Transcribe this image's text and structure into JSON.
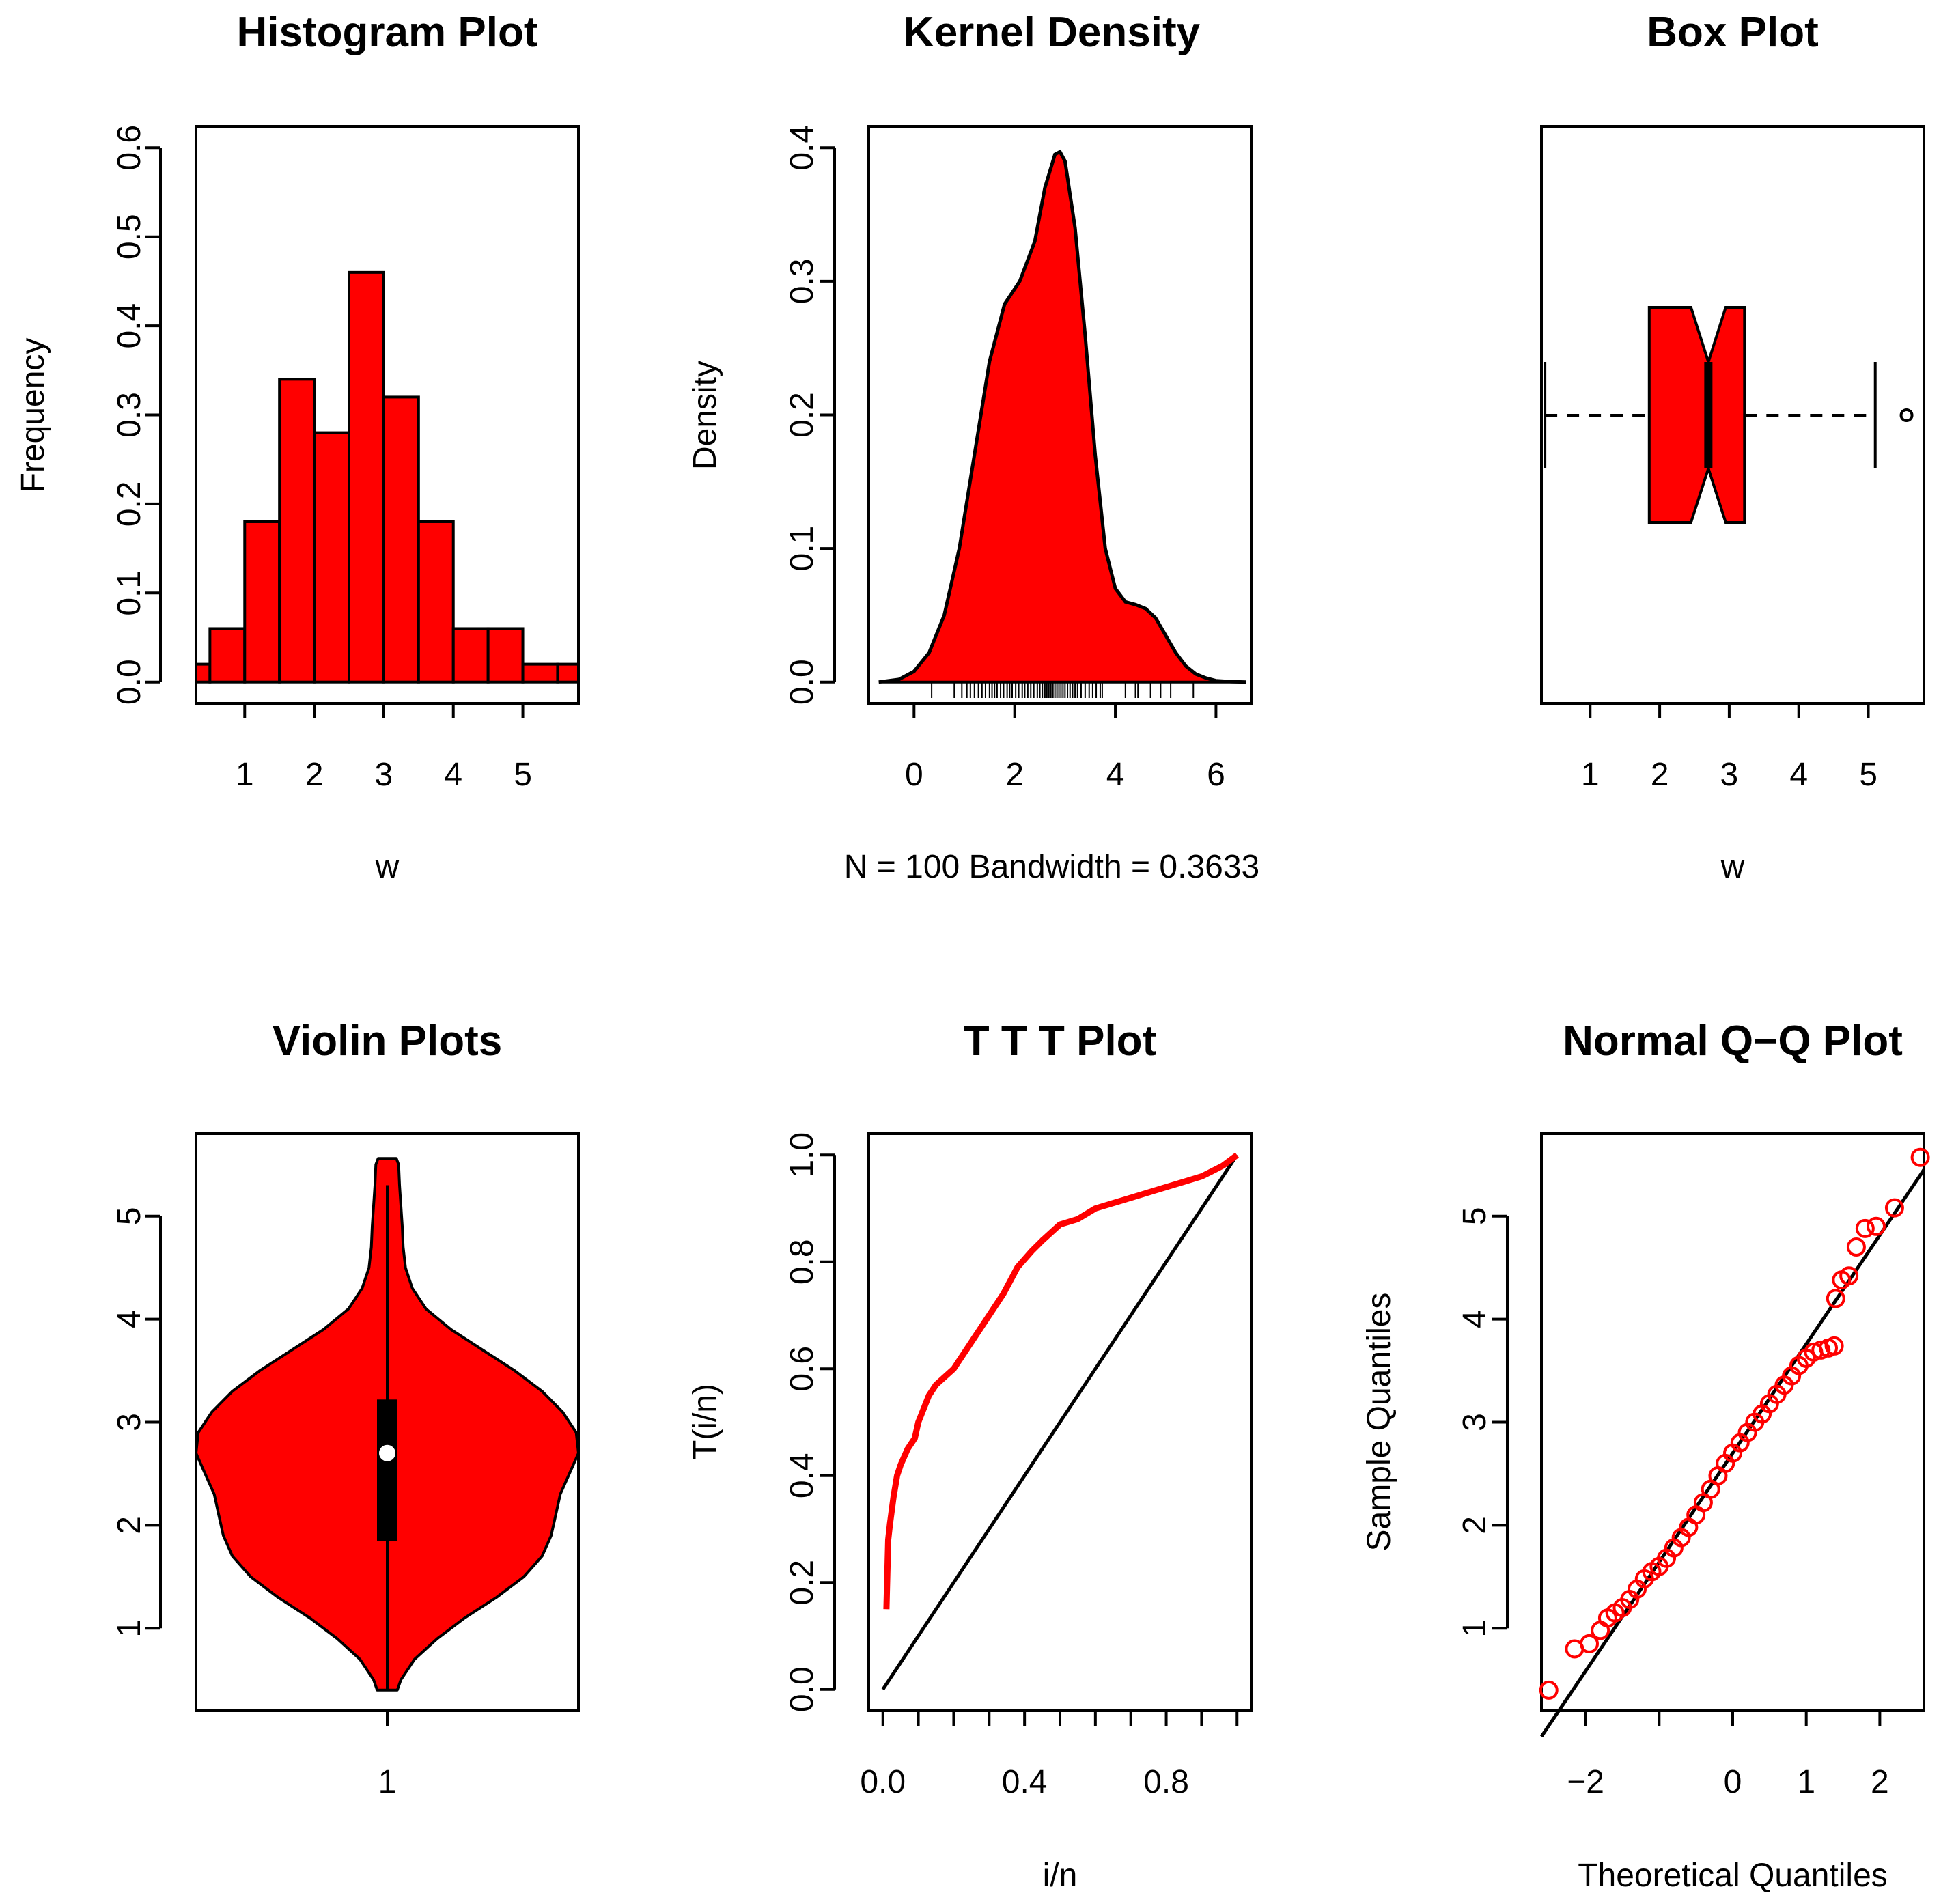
{
  "colors": {
    "fill": "#ff0000",
    "line": "#000000",
    "background": "#ffffff"
  },
  "chart_data": [
    {
      "type": "bar",
      "title": "Histogram Plot",
      "xlabel": "w",
      "ylabel": "Frequency",
      "xlim": [
        0.3,
        5.8
      ],
      "ylim": [
        0,
        0.6
      ],
      "xticks": [
        "1",
        "2",
        "3",
        "4",
        "5"
      ],
      "yticks": [
        "0.0",
        "0.1",
        "0.2",
        "0.3",
        "0.4",
        "0.5",
        "0.6"
      ],
      "bins": [
        {
          "x0": 0.3,
          "x1": 0.5,
          "value": 0.02
        },
        {
          "x0": 0.5,
          "x1": 1.0,
          "value": 0.06
        },
        {
          "x0": 1.0,
          "x1": 1.5,
          "value": 0.18
        },
        {
          "x0": 1.5,
          "x1": 2.0,
          "value": 0.34
        },
        {
          "x0": 2.0,
          "x1": 2.5,
          "value": 0.28
        },
        {
          "x0": 2.5,
          "x1": 3.0,
          "value": 0.46
        },
        {
          "x0": 3.0,
          "x1": 3.5,
          "value": 0.32
        },
        {
          "x0": 3.5,
          "x1": 4.0,
          "value": 0.18
        },
        {
          "x0": 4.0,
          "x1": 4.5,
          "value": 0.06
        },
        {
          "x0": 4.5,
          "x1": 5.0,
          "value": 0.06
        },
        {
          "x0": 5.0,
          "x1": 5.5,
          "value": 0.02
        },
        {
          "x0": 5.5,
          "x1": 5.8,
          "value": 0.02
        }
      ]
    },
    {
      "type": "area",
      "title": "Kernel Density",
      "xlabel": "N = 100   Bandwidth = 0.3633",
      "ylabel": "Density",
      "xlim": [
        -0.9,
        6.7
      ],
      "ylim": [
        0,
        0.4
      ],
      "xticks": [
        "0",
        "2",
        "4",
        "6"
      ],
      "yticks": [
        "0.0",
        "0.1",
        "0.2",
        "0.3",
        "0.4"
      ],
      "x": [
        -0.7,
        -0.3,
        0.0,
        0.3,
        0.6,
        0.9,
        1.2,
        1.5,
        1.8,
        2.1,
        2.4,
        2.6,
        2.8,
        2.9,
        3.0,
        3.2,
        3.4,
        3.6,
        3.8,
        4.0,
        4.2,
        4.4,
        4.6,
        4.8,
        5.0,
        5.2,
        5.4,
        5.6,
        5.8,
        6.0,
        6.3,
        6.6
      ],
      "y": [
        0.0,
        0.002,
        0.008,
        0.022,
        0.05,
        0.1,
        0.17,
        0.24,
        0.283,
        0.3,
        0.33,
        0.37,
        0.395,
        0.397,
        0.39,
        0.34,
        0.26,
        0.17,
        0.1,
        0.07,
        0.06,
        0.058,
        0.055,
        0.048,
        0.035,
        0.022,
        0.012,
        0.006,
        0.003,
        0.001,
        0.0003,
        0.0
      ],
      "rug": [
        0.35,
        0.8,
        0.95,
        1.05,
        1.12,
        1.2,
        1.28,
        1.35,
        1.42,
        1.5,
        1.55,
        1.6,
        1.65,
        1.72,
        1.78,
        1.85,
        1.9,
        1.95,
        2.02,
        2.08,
        2.15,
        2.2,
        2.26,
        2.32,
        2.38,
        2.45,
        2.5,
        2.55,
        2.6,
        2.64,
        2.68,
        2.72,
        2.76,
        2.8,
        2.84,
        2.88,
        2.92,
        2.96,
        3.0,
        3.05,
        3.1,
        3.15,
        3.2,
        3.25,
        3.32,
        3.4,
        3.48,
        3.55,
        3.62,
        3.7,
        3.74,
        4.2,
        4.4,
        4.45,
        4.7,
        4.9,
        5.1,
        5.55
      ]
    },
    {
      "type": "box",
      "title": "Box Plot",
      "xlabel": "w",
      "xlim": [
        0.3,
        5.8
      ],
      "xticks": [
        "1",
        "2",
        "3",
        "4",
        "5"
      ],
      "stats": {
        "whisker_low": 0.35,
        "q1": 1.85,
        "median": 2.7,
        "q3": 3.22,
        "whisker_high": 5.1,
        "notch_low": 2.45,
        "notch_high": 2.95
      },
      "outliers": [
        5.55
      ]
    },
    {
      "type": "violin",
      "title": "Violin Plots",
      "xticks": [
        "1"
      ],
      "ylim": [
        0.2,
        5.8
      ],
      "yticks": [
        "1",
        "2",
        "3",
        "4",
        "5"
      ],
      "profile": {
        "y": [
          0.4,
          0.5,
          0.7,
          0.9,
          1.1,
          1.3,
          1.5,
          1.7,
          1.9,
          2.1,
          2.3,
          2.5,
          2.7,
          2.9,
          3.1,
          3.3,
          3.5,
          3.7,
          3.9,
          4.1,
          4.3,
          4.5,
          4.7,
          4.9,
          5.1,
          5.3,
          5.5,
          5.56
        ],
        "half_width": [
          0.022,
          0.03,
          0.06,
          0.11,
          0.17,
          0.24,
          0.3,
          0.34,
          0.36,
          0.37,
          0.38,
          0.4,
          0.42,
          0.415,
          0.385,
          0.34,
          0.28,
          0.21,
          0.14,
          0.085,
          0.055,
          0.04,
          0.035,
          0.033,
          0.03,
          0.027,
          0.025,
          0.02
        ]
      },
      "whisker": [
        0.4,
        5.3
      ],
      "box": [
        1.85,
        3.22
      ],
      "median": 2.7
    },
    {
      "type": "line",
      "title": "T T T Plot",
      "xlabel": "i/n",
      "ylabel": "T(i/n)",
      "xlim": [
        -0.04,
        1.04
      ],
      "ylim": [
        -0.04,
        1.04
      ],
      "xticks": [
        "0.0",
        "0.4",
        "0.8"
      ],
      "yticks": [
        "0.0",
        "0.2",
        "0.4",
        "0.6",
        "0.8",
        "1.0"
      ],
      "series": [
        {
          "x": [
            0.01,
            0.015,
            0.02,
            0.03,
            0.04,
            0.05,
            0.07,
            0.09,
            0.1,
            0.13,
            0.15,
            0.2,
            0.22,
            0.26,
            0.3,
            0.34,
            0.38,
            0.42,
            0.45,
            0.5,
            0.55,
            0.6,
            0.65,
            0.7,
            0.75,
            0.8,
            0.85,
            0.9,
            0.93,
            0.96,
            0.98,
            0.99,
            1.0
          ],
          "y": [
            0.15,
            0.28,
            0.31,
            0.36,
            0.4,
            0.42,
            0.45,
            0.47,
            0.5,
            0.55,
            0.57,
            0.6,
            0.62,
            0.66,
            0.7,
            0.74,
            0.79,
            0.82,
            0.84,
            0.87,
            0.88,
            0.9,
            0.91,
            0.92,
            0.93,
            0.94,
            0.95,
            0.96,
            0.97,
            0.98,
            0.99,
            0.995,
            1.0
          ]
        },
        {
          "x": [
            0,
            1
          ],
          "y": [
            0,
            1
          ]
        }
      ]
    },
    {
      "type": "scatter",
      "title": "Normal Q−Q Plot",
      "xlabel": "Theoretical Quantiles",
      "ylabel": "Sample Quantiles",
      "xlim": [
        -2.6,
        2.6
      ],
      "ylim": [
        0.2,
        5.8
      ],
      "xticks": [
        "−2",
        "0",
        "1",
        "2"
      ],
      "yticks": [
        "1",
        "2",
        "3",
        "4",
        "5"
      ],
      "points": [
        {
          "x": -2.5,
          "y": 0.4
        },
        {
          "x": -2.15,
          "y": 0.8
        },
        {
          "x": -1.95,
          "y": 0.85
        },
        {
          "x": -1.8,
          "y": 0.98
        },
        {
          "x": -1.7,
          "y": 1.1
        },
        {
          "x": -1.6,
          "y": 1.15
        },
        {
          "x": -1.5,
          "y": 1.2
        },
        {
          "x": -1.4,
          "y": 1.28
        },
        {
          "x": -1.3,
          "y": 1.38
        },
        {
          "x": -1.2,
          "y": 1.48
        },
        {
          "x": -1.1,
          "y": 1.55
        },
        {
          "x": -1.0,
          "y": 1.6
        },
        {
          "x": -0.9,
          "y": 1.68
        },
        {
          "x": -0.8,
          "y": 1.78
        },
        {
          "x": -0.7,
          "y": 1.88
        },
        {
          "x": -0.6,
          "y": 1.98
        },
        {
          "x": -0.5,
          "y": 2.1
        },
        {
          "x": -0.4,
          "y": 2.22
        },
        {
          "x": -0.3,
          "y": 2.35
        },
        {
          "x": -0.2,
          "y": 2.48
        },
        {
          "x": -0.1,
          "y": 2.6
        },
        {
          "x": 0.0,
          "y": 2.7
        },
        {
          "x": 0.1,
          "y": 2.8
        },
        {
          "x": 0.2,
          "y": 2.9
        },
        {
          "x": 0.3,
          "y": 3.0
        },
        {
          "x": 0.4,
          "y": 3.08
        },
        {
          "x": 0.5,
          "y": 3.18
        },
        {
          "x": 0.6,
          "y": 3.27
        },
        {
          "x": 0.7,
          "y": 3.36
        },
        {
          "x": 0.8,
          "y": 3.45
        },
        {
          "x": 0.9,
          "y": 3.55
        },
        {
          "x": 1.0,
          "y": 3.62
        },
        {
          "x": 1.1,
          "y": 3.68
        },
        {
          "x": 1.2,
          "y": 3.7
        },
        {
          "x": 1.3,
          "y": 3.72
        },
        {
          "x": 1.38,
          "y": 3.74
        },
        {
          "x": 1.4,
          "y": 4.2
        },
        {
          "x": 1.48,
          "y": 4.38
        },
        {
          "x": 1.58,
          "y": 4.42
        },
        {
          "x": 1.68,
          "y": 4.7
        },
        {
          "x": 1.8,
          "y": 4.88
        },
        {
          "x": 1.95,
          "y": 4.9
        },
        {
          "x": 2.2,
          "y": 5.08
        },
        {
          "x": 2.55,
          "y": 5.57
        }
      ],
      "reference_line": {
        "x": [
          -2.6,
          2.6
        ],
        "y": [
          -0.05,
          5.45
        ]
      }
    }
  ]
}
